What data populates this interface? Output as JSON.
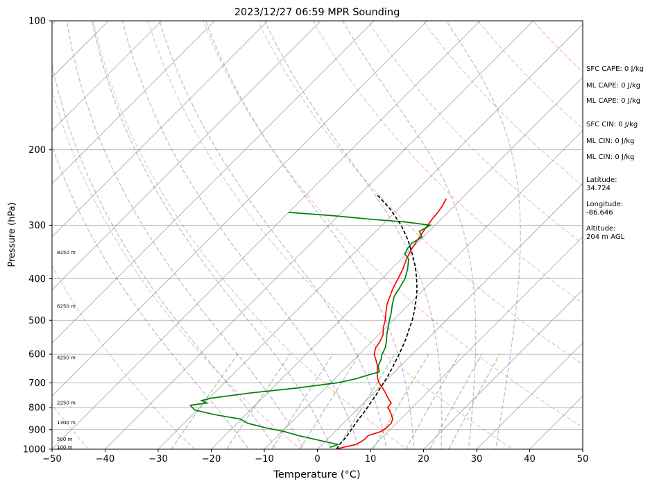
{
  "chart_data": {
    "type": "line",
    "title": "2023/12/27 06:59 MPR Sounding",
    "xlabel": "Temperature (°C)",
    "ylabel": "Pressure (hPa)",
    "xlim": [
      -50,
      50
    ],
    "ylim": [
      1000,
      100
    ],
    "y_scale": "log",
    "skew": "skew-T",
    "x_ticks": [
      -50,
      -40,
      -30,
      -20,
      -10,
      0,
      10,
      20,
      30,
      40,
      50
    ],
    "y_ticks": [
      1000,
      900,
      800,
      700,
      600,
      500,
      400,
      300,
      200,
      100
    ],
    "grid": true,
    "series": [
      {
        "color": "#ff0000",
        "pressure": [
          1000,
          990,
          975,
          960,
          950,
          930,
          910,
          890,
          870,
          850,
          830,
          810,
          800,
          780,
          760,
          740,
          720,
          700,
          680,
          660,
          640,
          620,
          600,
          580,
          560,
          540,
          520,
          500,
          480,
          460,
          440,
          420,
          400,
          380,
          360,
          340,
          320,
          300,
          290,
          280,
          270,
          260
        ],
        "values": [
          3.6,
          4.5,
          6.4,
          6.8,
          7.0,
          7.0,
          8.6,
          9.0,
          9.0,
          8.5,
          7.4,
          6.2,
          5.4,
          5.2,
          3.7,
          2.3,
          0.8,
          -0.9,
          -2.2,
          -3.3,
          -4.3,
          -5.7,
          -7.2,
          -8.1,
          -8.5,
          -9.2,
          -10.5,
          -11.5,
          -12.8,
          -14.1,
          -15.1,
          -16.1,
          -16.9,
          -17.8,
          -19.0,
          -20.0,
          -20.7,
          -21.4,
          -21.7,
          -21.9,
          -22.3,
          -22.9
        ]
      },
      {
        "color": "#008000",
        "pressure": [
          990,
          975,
          960,
          945,
          930,
          910,
          890,
          870,
          850,
          830,
          810,
          790,
          780,
          770,
          760,
          740,
          720,
          700,
          685,
          670,
          660,
          640,
          620,
          600,
          580,
          560,
          540,
          520,
          500,
          480,
          460,
          440,
          420,
          400,
          380,
          360,
          350,
          340,
          330,
          320,
          310,
          300,
          295,
          290,
          285,
          280
        ],
        "values": [
          2.0,
          3.0,
          0.0,
          -3.0,
          -6.0,
          -9.5,
          -14.0,
          -18.0,
          -20.2,
          -26.0,
          -30.5,
          -32.2,
          -29.5,
          -31.0,
          -29.6,
          -23.5,
          -15.5,
          -8.8,
          -6.0,
          -4.3,
          -2.9,
          -4.2,
          -4.8,
          -5.7,
          -6.3,
          -7.3,
          -8.5,
          -9.6,
          -10.7,
          -11.8,
          -13.1,
          -14.3,
          -14.9,
          -15.6,
          -16.9,
          -18.6,
          -20.3,
          -20.8,
          -21.0,
          -20.2,
          -21.8,
          -20.9,
          -26.0,
          -34.0,
          -41.0,
          -50.0
        ]
      },
      {
        "color": "#000000",
        "pressure": [
          1000,
          975,
          950,
          925,
          900,
          875,
          850,
          825,
          800,
          775,
          750,
          725,
          700,
          675,
          650,
          625,
          600,
          575,
          550,
          525,
          500,
          475,
          450,
          425,
          400,
          375,
          350,
          325,
          300,
          275,
          255
        ],
        "values": [
          3.6,
          3.3,
          3.2,
          3.0,
          2.7,
          2.4,
          2.1,
          1.9,
          1.6,
          1.2,
          0.9,
          0.4,
          0.0,
          -0.5,
          -1.1,
          -1.8,
          -2.5,
          -3.3,
          -4.2,
          -5.3,
          -6.4,
          -7.8,
          -9.4,
          -11.2,
          -13.4,
          -15.9,
          -18.9,
          -22.3,
          -26.4,
          -31.5,
          -36.6
        ]
      }
    ],
    "height_labels": [
      {
        "text": "100 m",
        "pressure": 989
      },
      {
        "text": "500 m",
        "pressure": 947
      },
      {
        "text": "1300 m",
        "pressure": 866
      },
      {
        "text": "2250 m",
        "pressure": 779
      },
      {
        "text": "4250 m",
        "pressure": 611
      },
      {
        "text": "6250 m",
        "pressure": 464
      },
      {
        "text": "8250 m",
        "pressure": 347
      }
    ],
    "dry_adiabats_theta_K": [
      230,
      250,
      270,
      290,
      310,
      330,
      350,
      370,
      390,
      410,
      430,
      450
    ],
    "moist_adiabats_start_C": [
      -10,
      -5,
      0,
      5,
      10,
      15,
      20,
      25,
      30,
      35
    ],
    "mixing_ratio_lines_gkg": [
      0.4,
      1,
      2,
      3,
      5,
      8,
      12,
      16,
      20
    ]
  },
  "side_panel": {
    "sfc_cape": "SFC CAPE: 0 J/kg",
    "ml_cape": "ML CAPE: 0 J/kg",
    "ml_cape_2": "ML CAPE: 0 J/kg",
    "sfc_cin": "SFC CIN: 0 J/kg",
    "ml_cin": "ML CIN: 0 J/kg",
    "ml_cin_2": "ML CIN: 0 J/kg",
    "latitude_label": "Latitude:",
    "latitude_value": "34.724",
    "longitude_label": "Longitude:",
    "longitude_value": "-86.646",
    "altitude_label": "Altitude:",
    "altitude_value": "204 m AGL"
  },
  "colors": {
    "temperature": "#ff0000",
    "dewpoint": "#008000",
    "parcel": "#000000",
    "dry_adiabat": "#f08080",
    "moist_adiabat": "#6a5acd",
    "mixing_ratio": "#2ca02c",
    "isotherm": "#808080"
  }
}
